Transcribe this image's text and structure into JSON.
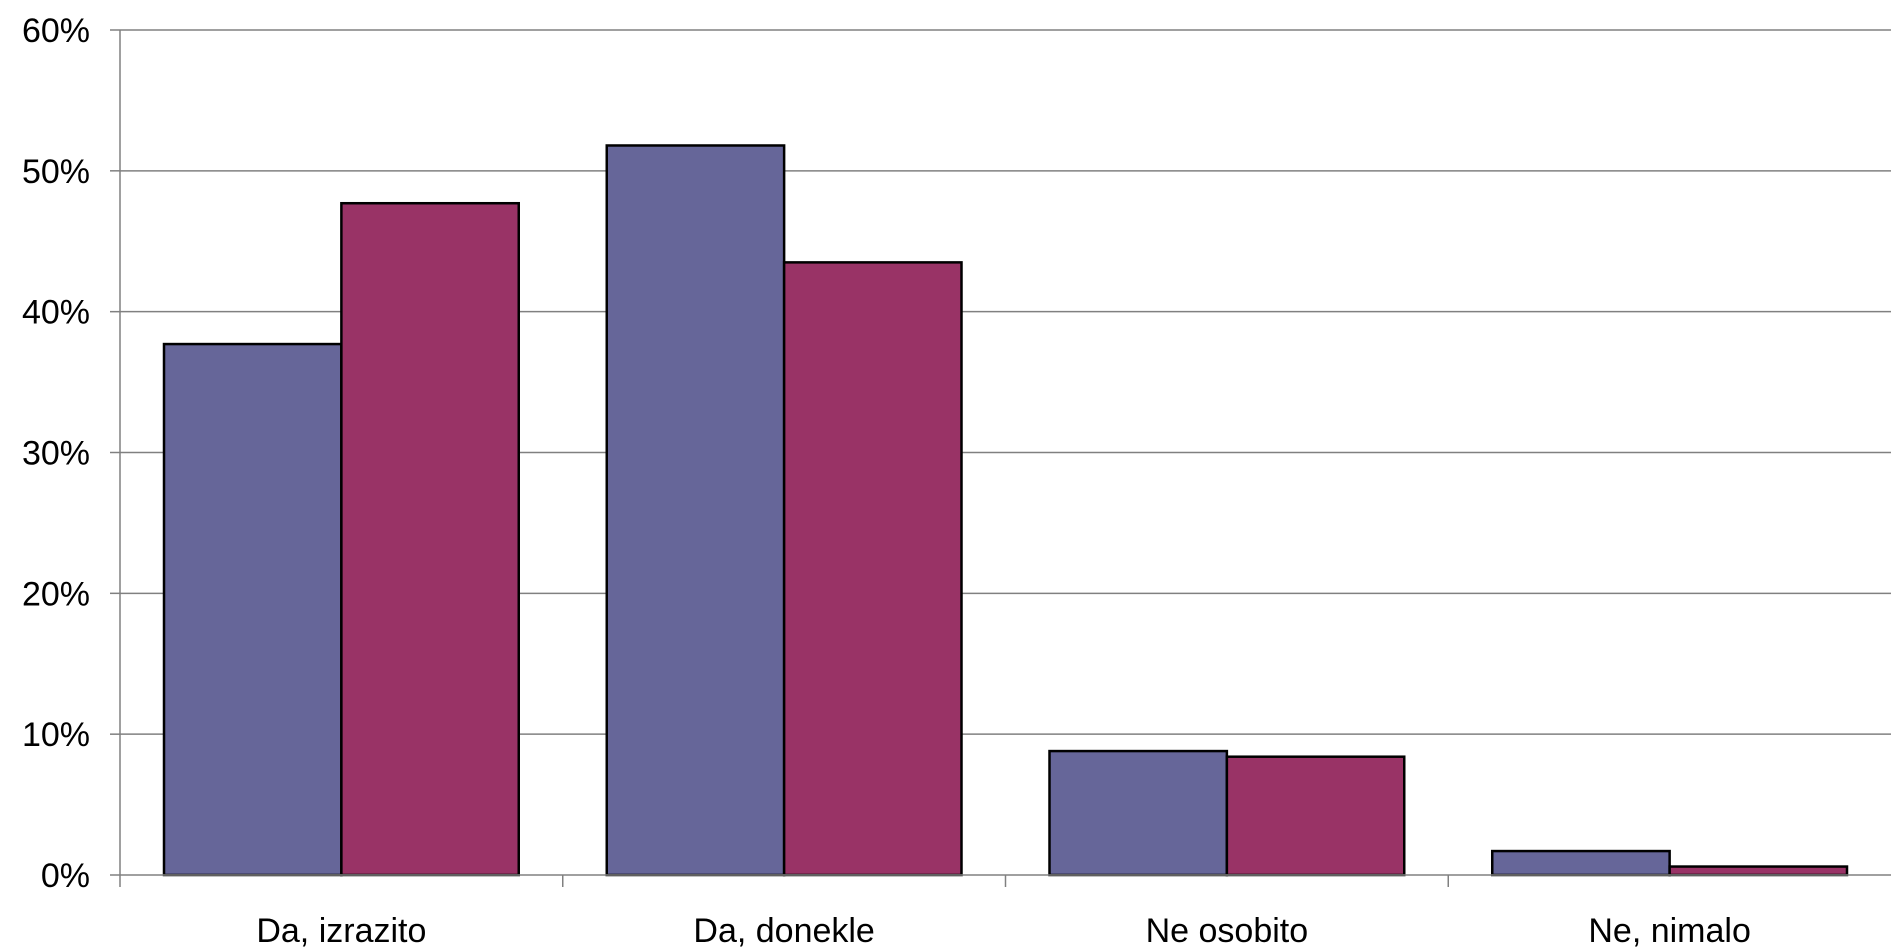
{
  "chart_data": {
    "type": "bar",
    "categories": [
      "Da, izrazito",
      "Da, donekle",
      "Ne osobito",
      "Ne, nimalo"
    ],
    "series": [
      {
        "values": [
          37.7,
          51.8,
          8.8,
          1.7
        ],
        "color": "#666699"
      },
      {
        "values": [
          47.7,
          43.5,
          8.4,
          0.6
        ],
        "color": "#993366"
      }
    ],
    "ylim": [
      0,
      60
    ],
    "yticks": [
      0,
      10,
      20,
      30,
      40,
      50,
      60
    ],
    "ytick_labels": [
      "0%",
      "10%",
      "20%",
      "30%",
      "40%",
      "50%",
      "60%"
    ],
    "grid": true,
    "legend": false,
    "gridline_color": "#808080",
    "bar_outline_color": "#000000",
    "axis_color": "#808080",
    "title": "",
    "xlabel": "",
    "ylabel": ""
  }
}
